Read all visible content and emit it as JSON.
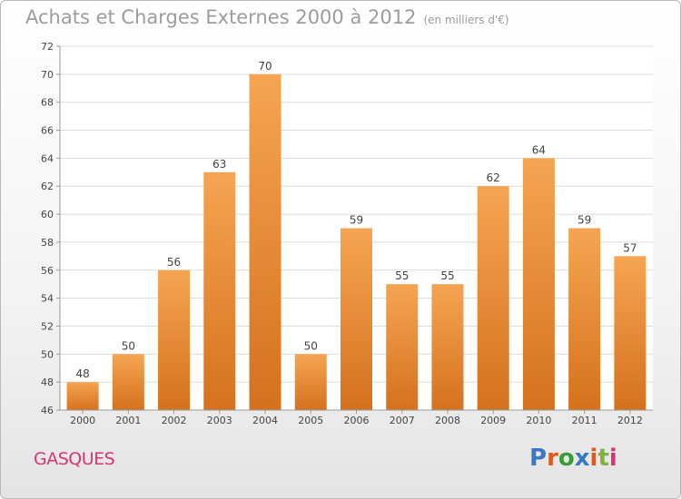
{
  "header": {
    "title": "Achats et Charges Externes 2000 à 2012",
    "subtitle": "(en milliers d'€)"
  },
  "commune": "GASQUES",
  "logo": {
    "letters": [
      "P",
      "r",
      "o",
      "x",
      "i",
      "t",
      "i"
    ],
    "colors": [
      "#3a78c4",
      "#e05a1e",
      "#3a9b3a",
      "#3a78c4",
      "#e05a1e",
      "#7ab23a",
      "#d9347a"
    ]
  },
  "chart_data": {
    "type": "bar",
    "title": "Achats et Charges Externes 2000 à 2012",
    "categories": [
      "2000",
      "2001",
      "2002",
      "2003",
      "2004",
      "2005",
      "2006",
      "2007",
      "2008",
      "2009",
      "2010",
      "2011",
      "2012"
    ],
    "values": [
      48,
      50,
      56,
      63,
      70,
      50,
      59,
      55,
      55,
      62,
      64,
      59,
      57
    ],
    "ylim": [
      46,
      72
    ],
    "yticks": [
      46,
      48,
      50,
      52,
      54,
      56,
      58,
      60,
      62,
      64,
      66,
      68,
      70,
      72
    ],
    "grid": true,
    "bar_color_top": "#f5a552",
    "bar_color_bottom": "#d5711d"
  }
}
